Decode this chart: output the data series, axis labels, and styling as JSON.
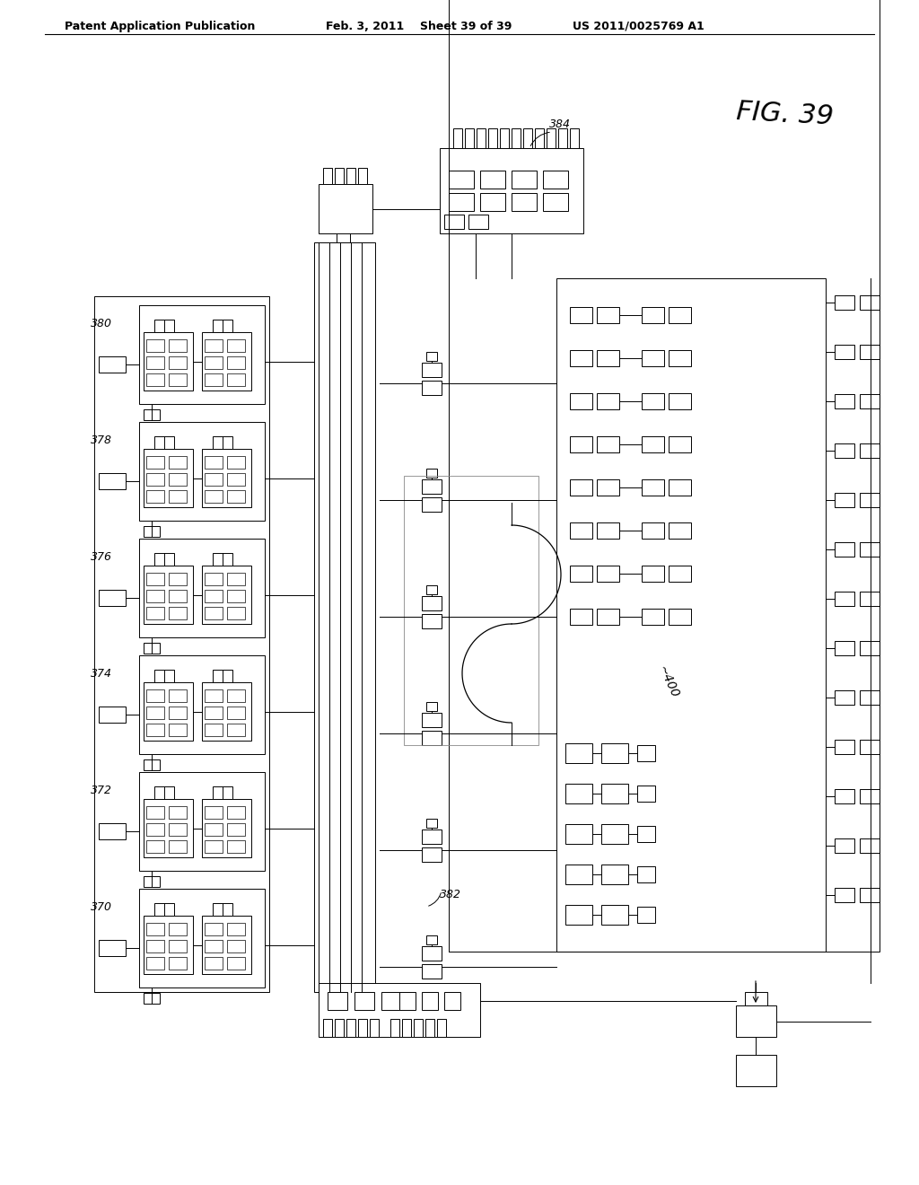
{
  "title_left": "Patent Application Publication",
  "title_mid": "Feb. 3, 2011",
  "title_sheet": "Sheet 39 of 39",
  "title_right": "US 2011/0025769 A1",
  "fig_label": "FIG. 39",
  "label_384": "384",
  "label_382": "382",
  "label_400": "~400",
  "label_380": "380",
  "label_378": "378",
  "label_376": "376",
  "label_374": "374",
  "label_372": "372",
  "label_370": "370",
  "bg_color": "#ffffff",
  "line_color": "#000000",
  "header_fontsize": 9,
  "fig_fontsize": 20,
  "label_fontsize": 9
}
